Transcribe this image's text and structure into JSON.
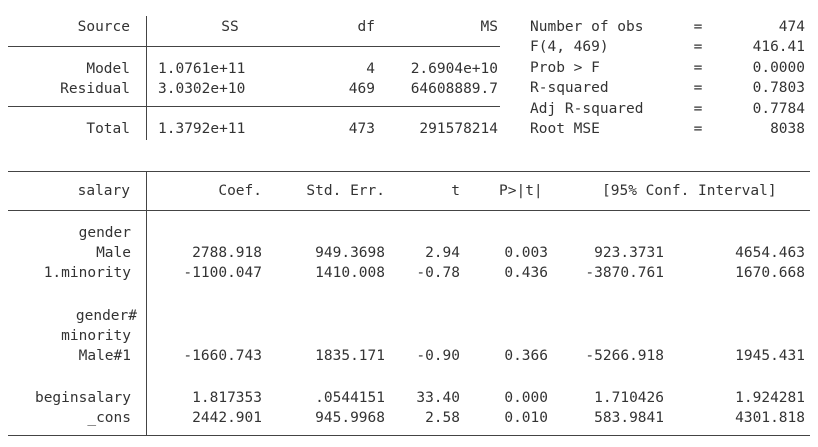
{
  "anova": {
    "header": {
      "source": "Source",
      "ss": "SS",
      "df": "df",
      "ms": "MS"
    },
    "rows": [
      {
        "source": "Model",
        "ss": "1.0761e+11",
        "df": "4",
        "ms": "2.6904e+10"
      },
      {
        "source": "Residual",
        "ss": "3.0302e+10",
        "df": "469",
        "ms": "64608889.7"
      }
    ],
    "total": {
      "source": "Total",
      "ss": "1.3792e+11",
      "df": "473",
      "ms": "291578214"
    }
  },
  "stats": [
    {
      "label": "Number of obs",
      "eq": "=",
      "value": "474"
    },
    {
      "label": "F(4, 469)",
      "eq": "=",
      "value": "416.41"
    },
    {
      "label": "Prob > F",
      "eq": "=",
      "value": "0.0000"
    },
    {
      "label": "R-squared",
      "eq": "=",
      "value": "0.7803"
    },
    {
      "label": "Adj R-squared",
      "eq": "=",
      "value": "0.7784"
    },
    {
      "label": "Root MSE",
      "eq": "=",
      "value": "8038"
    }
  ],
  "coef": {
    "header": {
      "var": "salary",
      "coef": "Coef.",
      "se": "Std. Err.",
      "t": "t",
      "p": "P>|t|",
      "ci": "[95% Conf. Interval]"
    },
    "labels": {
      "gender": "gender",
      "gender_minority_1": "gender#",
      "gender_minority_2": "minority"
    },
    "rows": [
      {
        "var": "Male",
        "coef": "2788.918",
        "se": "949.3698",
        "t": "2.94",
        "p": "0.003",
        "lo": "923.3731",
        "hi": "4654.463"
      },
      {
        "var": "1.minority",
        "coef": "-1100.047",
        "se": "1410.008",
        "t": "-0.78",
        "p": "0.436",
        "lo": "-3870.761",
        "hi": "1670.668"
      },
      {
        "var": "Male#1",
        "coef": "-1660.743",
        "se": "1835.171",
        "t": "-0.90",
        "p": "0.366",
        "lo": "-5266.918",
        "hi": "1945.431"
      },
      {
        "var": "beginsalary",
        "coef": "1.817353",
        "se": ".0544151",
        "t": "33.40",
        "p": "0.000",
        "lo": "1.710426",
        "hi": "1.924281"
      },
      {
        "var": "_cons",
        "coef": "2442.901",
        "se": "945.9968",
        "t": "2.58",
        "p": "0.010",
        "lo": "583.9841",
        "hi": "4301.818"
      }
    ]
  }
}
